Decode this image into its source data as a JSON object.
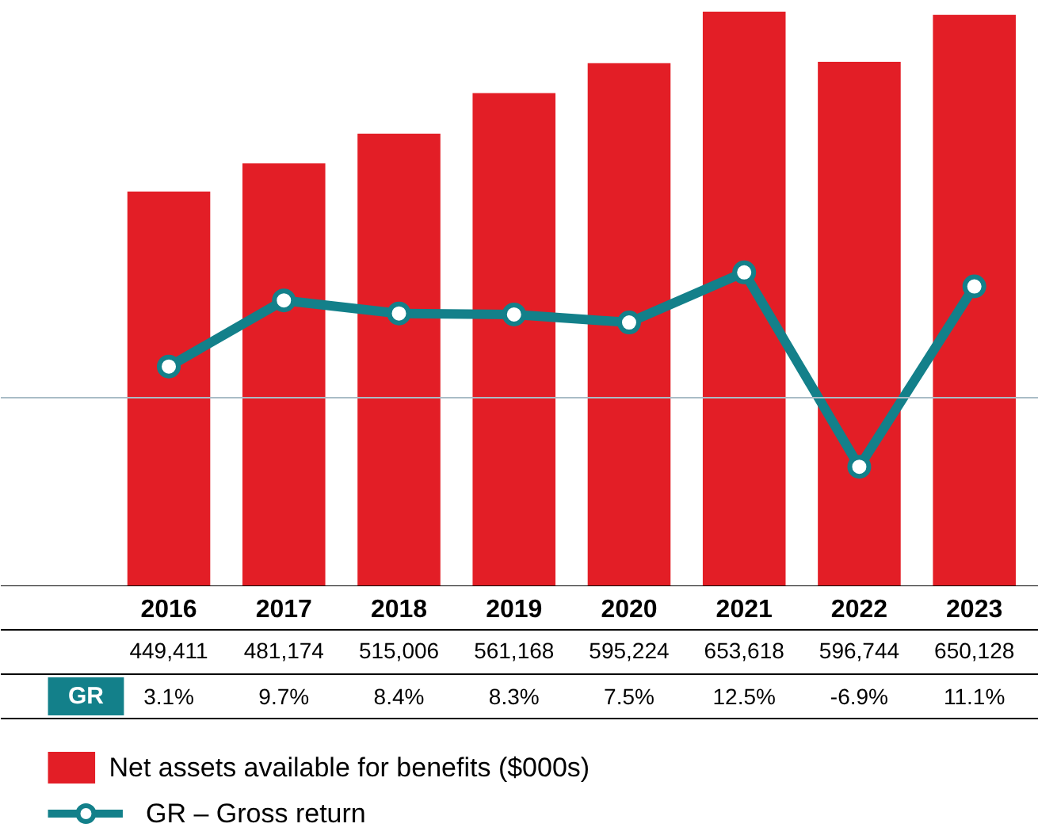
{
  "chart_data": {
    "type": "bar",
    "categories": [
      "2016",
      "2017",
      "2018",
      "2019",
      "2020",
      "2021",
      "2022",
      "2023"
    ],
    "ylim": [
      0,
      666000
    ],
    "y2lim": [
      -18.9,
      39.6
    ],
    "series": [
      {
        "name": "Net assets available for benefits ($000s)",
        "color": "#e31e26",
        "values": [
          449411,
          481174,
          515006,
          561168,
          595224,
          653618,
          596744,
          650128
        ],
        "value_labels": [
          "449,411",
          "481,174",
          "515,006",
          "561,168",
          "595,224",
          "653,618",
          "596,744",
          "650,128"
        ]
      },
      {
        "name": "GR – Gross return",
        "type": "line",
        "axis": "y2",
        "marker": "circle",
        "color": "#13808a",
        "values": [
          3.1,
          9.7,
          8.4,
          8.3,
          7.5,
          12.5,
          -6.9,
          11.1
        ],
        "value_labels": [
          "3.1%",
          "9.7%",
          "8.4%",
          "8.3%",
          "7.5%",
          "12.5%",
          "-6.9%",
          "11.1%"
        ]
      }
    ],
    "ref_lines": [
      {
        "axis": "y2",
        "value": 0,
        "color": "#a9bcc6"
      }
    ],
    "annotations": [
      "GR"
    ],
    "legend": "bottom",
    "grid": false
  }
}
